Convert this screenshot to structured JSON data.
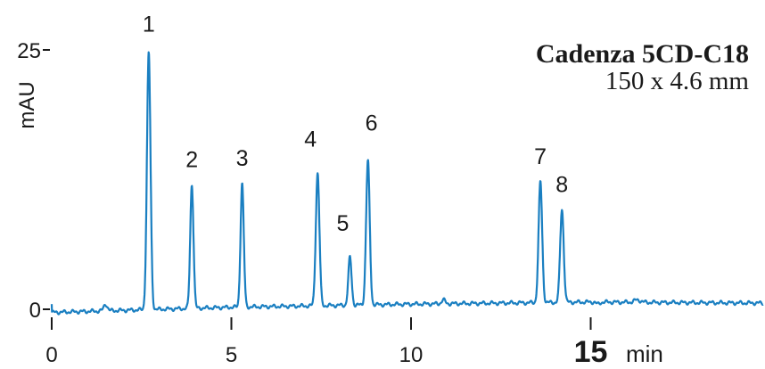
{
  "chart_data": {
    "type": "line",
    "title": "Cadenza 5CD-C18",
    "subtitle": "150 x 4.6 mm",
    "ylabel": "mAU",
    "xlabel": "min",
    "xlim": [
      0,
      19.8
    ],
    "ylim": [
      0,
      25
    ],
    "x_ticks": [
      {
        "value": 0,
        "label": "0"
      },
      {
        "value": 5,
        "label": "5"
      },
      {
        "value": 10,
        "label": "10"
      },
      {
        "value": 15,
        "label": "15",
        "highlight": true
      }
    ],
    "y_ticks": [
      {
        "value": 0,
        "label": "0"
      },
      {
        "value": 25,
        "label": "25"
      }
    ],
    "highlight_color": "#d6252b",
    "line_color": "#1a7fc1",
    "peaks": [
      {
        "label": "1",
        "x": 2.7,
        "y": 24.7,
        "width": 0.05
      },
      {
        "label": "2",
        "x": 3.9,
        "y": 12.0,
        "width": 0.045
      },
      {
        "label": "3",
        "x": 5.3,
        "y": 12.1,
        "width": 0.045
      },
      {
        "label": "4",
        "x": 7.4,
        "y": 13.1,
        "width": 0.05
      },
      {
        "label": "5",
        "x": 8.3,
        "y": 5.0,
        "width": 0.045
      },
      {
        "label": "6",
        "x": 8.8,
        "y": 14.3,
        "width": 0.05
      },
      {
        "label": "7",
        "x": 13.6,
        "y": 12.3,
        "width": 0.05
      },
      {
        "label": "8",
        "x": 14.2,
        "y": 9.6,
        "width": 0.05
      }
    ],
    "minor_peaks": [
      {
        "x": 1.5,
        "y": 0.5,
        "width": 0.05
      },
      {
        "x": 10.9,
        "y": 0.9,
        "width": 0.05
      },
      {
        "x": 15.2,
        "y": 0.5,
        "width": 0.05
      },
      {
        "x": 16.3,
        "y": 0.9,
        "width": 0.09
      }
    ],
    "baseline": [
      {
        "x": 0,
        "y": -0.3
      },
      {
        "x": 5,
        "y": 0.2
      },
      {
        "x": 10,
        "y": 0.5
      },
      {
        "x": 15,
        "y": 0.7
      },
      {
        "x": 19.8,
        "y": 0.6
      }
    ]
  }
}
